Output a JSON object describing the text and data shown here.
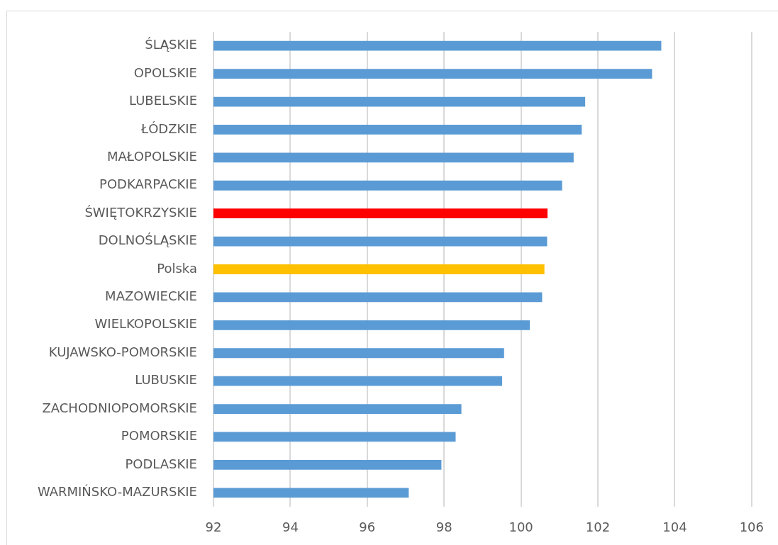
{
  "chart_data": {
    "type": "bar",
    "orientation": "horizontal",
    "categories": [
      "ŚLĄSKIE",
      "OPOLSKIE",
      "LUBELSKIE",
      "ŁÓDZKIE",
      "MAŁOPOLSKIE",
      "PODKARPACKIE",
      "ŚWIĘTOKRZYSKIE",
      "DOLNOŚLĄSKIE",
      "Polska",
      "MAZOWIECKIE",
      "WIELKOPOLSKIE",
      "KUJAWSKO-POMORSKIE",
      "LUBUSKIE",
      "ZACHODNIOPOMORSKIE",
      "POMORSKIE",
      "PODLASKIE",
      "WARMIŃSKO-MAZURSKIE"
    ],
    "values": [
      103.65,
      103.41,
      101.67,
      101.58,
      101.37,
      101.07,
      100.69,
      100.68,
      100.61,
      100.55,
      100.23,
      99.56,
      99.51,
      98.45,
      98.3,
      97.93,
      97.08
    ],
    "colors": [
      "#5b9bd5",
      "#5b9bd5",
      "#5b9bd5",
      "#5b9bd5",
      "#5b9bd5",
      "#5b9bd5",
      "#ff0000",
      "#5b9bd5",
      "#ffc000",
      "#5b9bd5",
      "#5b9bd5",
      "#5b9bd5",
      "#5b9bd5",
      "#5b9bd5",
      "#5b9bd5",
      "#5b9bd5",
      "#5b9bd5"
    ],
    "xlim": [
      92,
      106
    ],
    "xticks": [
      92,
      94,
      96,
      98,
      100,
      102,
      104,
      106
    ],
    "grid": "x"
  }
}
